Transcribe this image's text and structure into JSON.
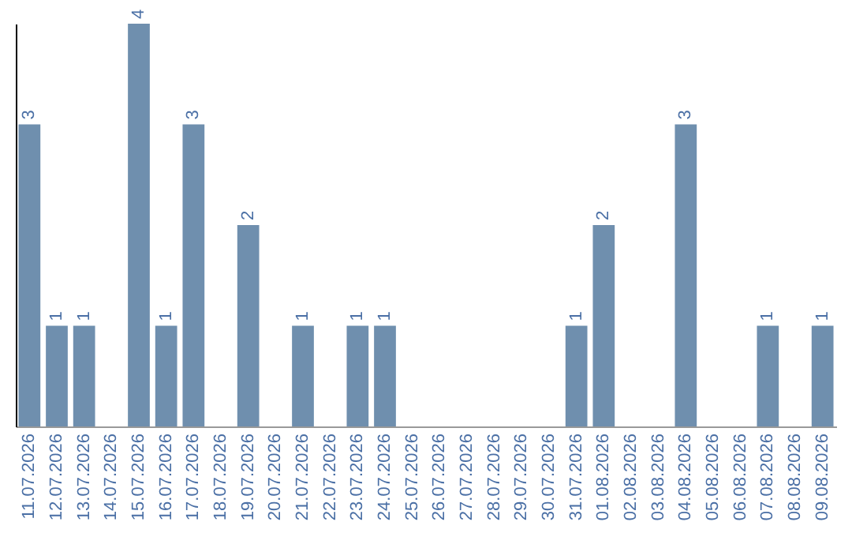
{
  "chart_data": {
    "type": "bar",
    "categories": [
      "11.07.2026",
      "12.07.2026",
      "13.07.2026",
      "14.07.2026",
      "15.07.2026",
      "16.07.2026",
      "17.07.2026",
      "18.07.2026",
      "19.07.2026",
      "20.07.2026",
      "21.07.2026",
      "22.07.2026",
      "23.07.2026",
      "24.07.2026",
      "25.07.2026",
      "26.07.2026",
      "27.07.2026",
      "28.07.2026",
      "29.07.2026",
      "30.07.2026",
      "31.07.2026",
      "01.08.2026",
      "02.08.2026",
      "03.08.2026",
      "04.08.2026",
      "05.08.2026",
      "06.08.2026",
      "07.08.2026",
      "08.08.2026",
      "09.08.2026"
    ],
    "values": [
      3,
      1,
      1,
      null,
      4,
      1,
      3,
      null,
      2,
      null,
      1,
      null,
      1,
      1,
      null,
      null,
      null,
      null,
      null,
      null,
      1,
      2,
      null,
      null,
      3,
      null,
      null,
      1,
      null,
      1
    ],
    "color": "#6f8fae",
    "data_labels": true
  }
}
